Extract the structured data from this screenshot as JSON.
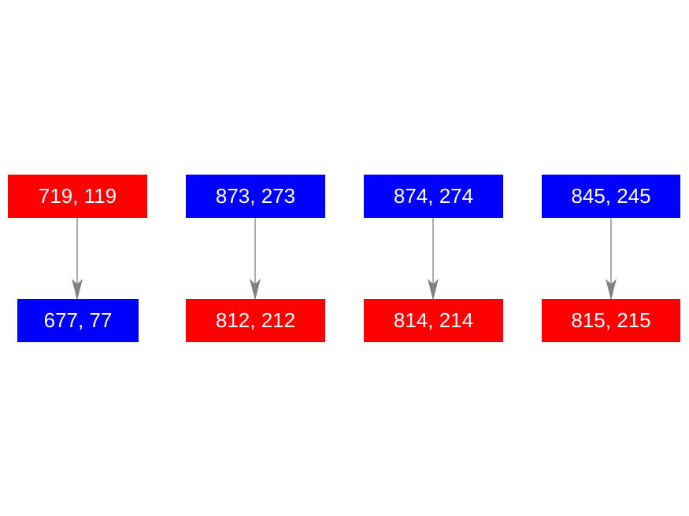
{
  "colors": {
    "red": "#ff0000",
    "blue": "#0000ff",
    "edge": "#808080",
    "text": "#ffffff"
  },
  "pairs": [
    {
      "parent": {
        "label": "719, 119",
        "color": "red"
      },
      "child": {
        "label": "677, 77",
        "color": "blue"
      }
    },
    {
      "parent": {
        "label": "873, 273",
        "color": "blue"
      },
      "child": {
        "label": "812, 212",
        "color": "red"
      }
    },
    {
      "parent": {
        "label": "874, 274",
        "color": "blue"
      },
      "child": {
        "label": "814, 214",
        "color": "red"
      }
    },
    {
      "parent": {
        "label": "845, 245",
        "color": "blue"
      },
      "child": {
        "label": "815, 215",
        "color": "red"
      }
    }
  ]
}
